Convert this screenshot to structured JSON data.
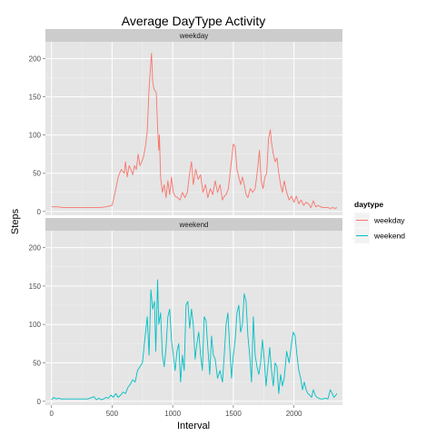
{
  "chart_data": {
    "type": "line",
    "title": "Average DayType Activity",
    "xlabel": "Interval",
    "ylabel": "Steps",
    "xlim": [
      -50,
      2400
    ],
    "ylim": [
      -5,
      222
    ],
    "x_ticks": [
      0,
      500,
      1000,
      1500,
      2000
    ],
    "y_ticks": [
      0,
      50,
      100,
      150,
      200
    ],
    "grid": true,
    "legend": {
      "title": "daytype",
      "position": "right",
      "entries": [
        {
          "label": "weekday",
          "color": "#F8766D"
        },
        {
          "label": "weekend",
          "color": "#00BFC4"
        }
      ]
    },
    "panels": [
      {
        "strip": "weekday",
        "series": "weekday",
        "color": "#F8766D",
        "points": [
          [
            0,
            6
          ],
          [
            50,
            6
          ],
          [
            100,
            5
          ],
          [
            200,
            5
          ],
          [
            300,
            5
          ],
          [
            400,
            5
          ],
          [
            450,
            6
          ],
          [
            500,
            8
          ],
          [
            525,
            25
          ],
          [
            550,
            45
          ],
          [
            575,
            55
          ],
          [
            600,
            50
          ],
          [
            610,
            65
          ],
          [
            625,
            45
          ],
          [
            640,
            60
          ],
          [
            655,
            55
          ],
          [
            670,
            48
          ],
          [
            685,
            60
          ],
          [
            700,
            55
          ],
          [
            715,
            75
          ],
          [
            730,
            60
          ],
          [
            745,
            65
          ],
          [
            760,
            72
          ],
          [
            775,
            85
          ],
          [
            790,
            105
          ],
          [
            805,
            160
          ],
          [
            815,
            185
          ],
          [
            825,
            207
          ],
          [
            835,
            170
          ],
          [
            845,
            160
          ],
          [
            855,
            158
          ],
          [
            865,
            155
          ],
          [
            875,
            110
          ],
          [
            885,
            80
          ],
          [
            890,
            100
          ],
          [
            900,
            45
          ],
          [
            915,
            25
          ],
          [
            930,
            35
          ],
          [
            945,
            18
          ],
          [
            960,
            40
          ],
          [
            975,
            22
          ],
          [
            990,
            45
          ],
          [
            1005,
            25
          ],
          [
            1020,
            20
          ],
          [
            1040,
            18
          ],
          [
            1060,
            15
          ],
          [
            1080,
            25
          ],
          [
            1100,
            18
          ],
          [
            1120,
            25
          ],
          [
            1140,
            50
          ],
          [
            1155,
            65
          ],
          [
            1170,
            35
          ],
          [
            1190,
            55
          ],
          [
            1210,
            42
          ],
          [
            1230,
            48
          ],
          [
            1250,
            25
          ],
          [
            1270,
            35
          ],
          [
            1290,
            18
          ],
          [
            1310,
            30
          ],
          [
            1330,
            22
          ],
          [
            1350,
            40
          ],
          [
            1370,
            25
          ],
          [
            1390,
            35
          ],
          [
            1410,
            15
          ],
          [
            1425,
            20
          ],
          [
            1440,
            22
          ],
          [
            1460,
            30
          ],
          [
            1480,
            60
          ],
          [
            1500,
            88
          ],
          [
            1515,
            85
          ],
          [
            1530,
            55
          ],
          [
            1545,
            45
          ],
          [
            1560,
            35
          ],
          [
            1575,
            45
          ],
          [
            1590,
            35
          ],
          [
            1605,
            22
          ],
          [
            1620,
            18
          ],
          [
            1640,
            30
          ],
          [
            1660,
            25
          ],
          [
            1680,
            30
          ],
          [
            1700,
            55
          ],
          [
            1715,
            80
          ],
          [
            1730,
            40
          ],
          [
            1745,
            30
          ],
          [
            1760,
            45
          ],
          [
            1775,
            50
          ],
          [
            1790,
            95
          ],
          [
            1805,
            107
          ],
          [
            1815,
            90
          ],
          [
            1830,
            75
          ],
          [
            1845,
            65
          ],
          [
            1860,
            70
          ],
          [
            1875,
            50
          ],
          [
            1890,
            35
          ],
          [
            1905,
            25
          ],
          [
            1920,
            40
          ],
          [
            1940,
            25
          ],
          [
            1960,
            15
          ],
          [
            1980,
            20
          ],
          [
            2000,
            12
          ],
          [
            2020,
            20
          ],
          [
            2040,
            10
          ],
          [
            2060,
            15
          ],
          [
            2080,
            8
          ],
          [
            2100,
            12
          ],
          [
            2120,
            10
          ],
          [
            2140,
            5
          ],
          [
            2160,
            14
          ],
          [
            2180,
            6
          ],
          [
            2200,
            8
          ],
          [
            2220,
            6
          ],
          [
            2240,
            5
          ],
          [
            2260,
            5
          ],
          [
            2280,
            5
          ],
          [
            2300,
            4
          ],
          [
            2320,
            5
          ],
          [
            2340,
            4
          ],
          [
            2355,
            5
          ]
        ]
      },
      {
        "strip": "weekend",
        "series": "weekend",
        "color": "#00BFC4",
        "points": [
          [
            0,
            2
          ],
          [
            20,
            5
          ],
          [
            40,
            3
          ],
          [
            60,
            4
          ],
          [
            80,
            3
          ],
          [
            100,
            3
          ],
          [
            150,
            3
          ],
          [
            200,
            3
          ],
          [
            250,
            3
          ],
          [
            300,
            3
          ],
          [
            350,
            6
          ],
          [
            370,
            2
          ],
          [
            390,
            4
          ],
          [
            410,
            2
          ],
          [
            430,
            3
          ],
          [
            450,
            5
          ],
          [
            470,
            4
          ],
          [
            490,
            8
          ],
          [
            510,
            5
          ],
          [
            530,
            10
          ],
          [
            550,
            5
          ],
          [
            570,
            8
          ],
          [
            590,
            12
          ],
          [
            610,
            10
          ],
          [
            630,
            18
          ],
          [
            650,
            22
          ],
          [
            670,
            28
          ],
          [
            690,
            25
          ],
          [
            710,
            40
          ],
          [
            730,
            45
          ],
          [
            750,
            50
          ],
          [
            770,
            80
          ],
          [
            790,
            110
          ],
          [
            805,
            60
          ],
          [
            820,
            145
          ],
          [
            835,
            120
          ],
          [
            850,
            130
          ],
          [
            860,
            65
          ],
          [
            875,
            158
          ],
          [
            885,
            100
          ],
          [
            900,
            115
          ],
          [
            915,
            60
          ],
          [
            930,
            45
          ],
          [
            945,
            70
          ],
          [
            960,
            110
          ],
          [
            975,
            120
          ],
          [
            990,
            80
          ],
          [
            1005,
            60
          ],
          [
            1020,
            40
          ],
          [
            1035,
            65
          ],
          [
            1050,
            75
          ],
          [
            1065,
            25
          ],
          [
            1080,
            60
          ],
          [
            1095,
            40
          ],
          [
            1110,
            125
          ],
          [
            1125,
            130
          ],
          [
            1140,
            95
          ],
          [
            1155,
            120
          ],
          [
            1170,
            100
          ],
          [
            1185,
            55
          ],
          [
            1200,
            75
          ],
          [
            1215,
            90
          ],
          [
            1230,
            60
          ],
          [
            1245,
            40
          ],
          [
            1260,
            110
          ],
          [
            1275,
            105
          ],
          [
            1290,
            70
          ],
          [
            1305,
            35
          ],
          [
            1320,
            85
          ],
          [
            1335,
            60
          ],
          [
            1350,
            55
          ],
          [
            1370,
            30
          ],
          [
            1390,
            40
          ],
          [
            1410,
            25
          ],
          [
            1425,
            60
          ],
          [
            1440,
            100
          ],
          [
            1455,
            115
          ],
          [
            1470,
            70
          ],
          [
            1485,
            30
          ],
          [
            1500,
            60
          ],
          [
            1515,
            80
          ],
          [
            1530,
            115
          ],
          [
            1545,
            125
          ],
          [
            1560,
            90
          ],
          [
            1575,
            100
          ],
          [
            1590,
            140
          ],
          [
            1605,
            130
          ],
          [
            1620,
            85
          ],
          [
            1635,
            60
          ],
          [
            1650,
            25
          ],
          [
            1665,
            110
          ],
          [
            1680,
            60
          ],
          [
            1695,
            45
          ],
          [
            1710,
            35
          ],
          [
            1725,
            50
          ],
          [
            1740,
            80
          ],
          [
            1755,
            55
          ],
          [
            1770,
            20
          ],
          [
            1785,
            45
          ],
          [
            1800,
            70
          ],
          [
            1815,
            40
          ],
          [
            1830,
            20
          ],
          [
            1845,
            50
          ],
          [
            1860,
            45
          ],
          [
            1875,
            10
          ],
          [
            1890,
            35
          ],
          [
            1905,
            20
          ],
          [
            1920,
            30
          ],
          [
            1940,
            65
          ],
          [
            1960,
            50
          ],
          [
            1980,
            75
          ],
          [
            1995,
            90
          ],
          [
            2010,
            85
          ],
          [
            2025,
            60
          ],
          [
            2040,
            40
          ],
          [
            2055,
            30
          ],
          [
            2070,
            15
          ],
          [
            2085,
            25
          ],
          [
            2100,
            15
          ],
          [
            2115,
            10
          ],
          [
            2130,
            8
          ],
          [
            2145,
            5
          ],
          [
            2160,
            15
          ],
          [
            2175,
            8
          ],
          [
            2190,
            5
          ],
          [
            2205,
            4
          ],
          [
            2220,
            3
          ],
          [
            2240,
            3
          ],
          [
            2260,
            4
          ],
          [
            2280,
            3
          ],
          [
            2300,
            15
          ],
          [
            2315,
            10
          ],
          [
            2330,
            5
          ],
          [
            2345,
            8
          ],
          [
            2355,
            10
          ]
        ]
      }
    ]
  }
}
